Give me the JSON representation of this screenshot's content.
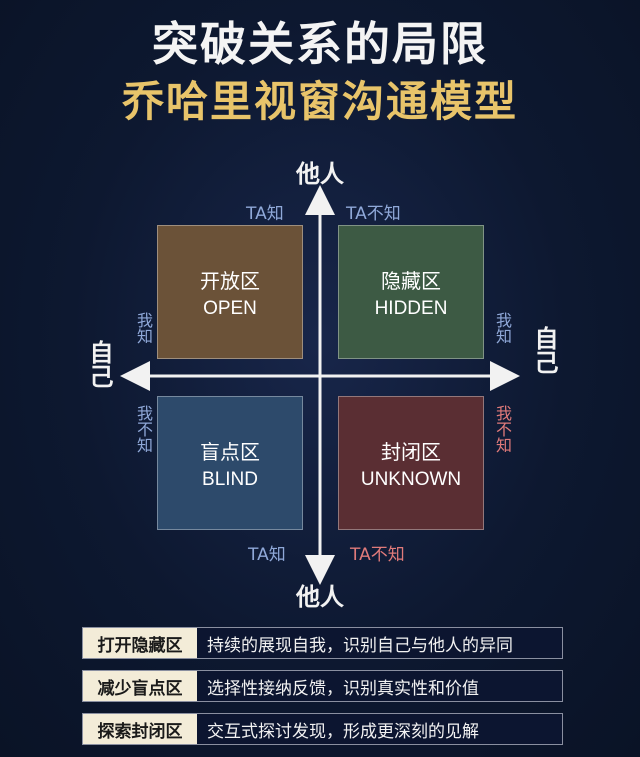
{
  "title": {
    "line1": "突破关系的局限",
    "line2": "乔哈里视窗沟通模型"
  },
  "axes": {
    "top": "他人",
    "bottom": "他人",
    "left": "自己",
    "right": "自己"
  },
  "edge_labels": {
    "top_left": "TA知",
    "top_right": "TA不知",
    "bottom_left": "TA知",
    "bottom_right": "TA不知",
    "left_upper": "我知",
    "left_lower": "我不知",
    "right_upper": "我知",
    "right_lower": "我不知"
  },
  "quadrants": {
    "open": {
      "zh": "开放区",
      "en": "OPEN",
      "color": "#6b5238"
    },
    "hidden": {
      "zh": "隐藏区",
      "en": "HIDDEN",
      "color": "#3d5a44"
    },
    "blind": {
      "zh": "盲点区",
      "en": "BLIND",
      "color": "#2d4a6b"
    },
    "unknown": {
      "zh": "封闭区",
      "en": "UNKNOWN",
      "color": "#5a2e33"
    }
  },
  "rows": [
    {
      "tag": "打开隐藏区",
      "desc": "持续的展现自我，识别自己与他人的异同"
    },
    {
      "tag": "减少盲点区",
      "desc": "选择性接纳反馈，识别真实性和价值"
    },
    {
      "tag": "探索封闭区",
      "desc": "交互式探讨发现，形成更深刻的见解"
    }
  ],
  "colors": {
    "background": "#0f1a33",
    "title_accent": "#e8c46a",
    "ta_know": "#8fa8d8",
    "ta_not_know": "#e07a7a"
  }
}
